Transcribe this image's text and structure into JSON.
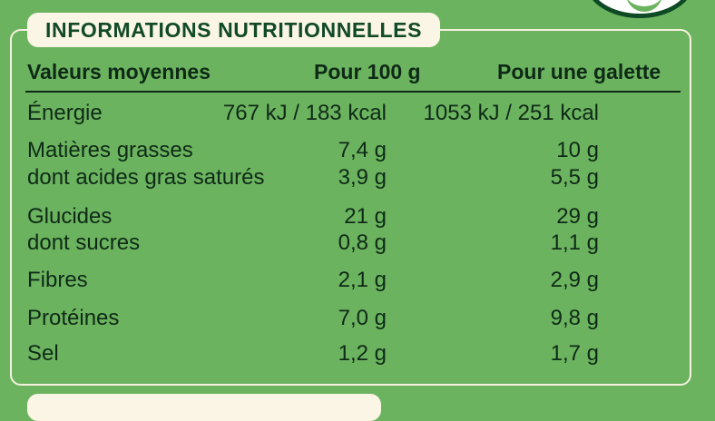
{
  "title": "INFORMATIONS NUTRITIONNELLES",
  "header": {
    "col0": "Valeurs moyennes",
    "col1": "Pour 100 g",
    "col2": "Pour une galette"
  },
  "rows": [
    {
      "label": "Énergie",
      "per100": "767 kJ / 183 kcal",
      "perGalette": "1053 kJ / 251 kcal"
    },
    {
      "label": "Matières grasses",
      "per100": "7,4 g",
      "perGalette": "10 g"
    },
    {
      "label": "dont acides gras saturés",
      "per100": "3,9 g",
      "perGalette": "5,5 g"
    },
    {
      "label": "Glucides",
      "per100": "21 g",
      "perGalette": "29 g"
    },
    {
      "label": "dont sucres",
      "per100": "0,8 g",
      "perGalette": "1,1 g"
    },
    {
      "label": "Fibres",
      "per100": "2,1 g",
      "perGalette": "2,9 g"
    },
    {
      "label": "Protéines",
      "per100": "7,0 g",
      "perGalette": "9,8 g"
    },
    {
      "label": "Sel",
      "per100": "1,2 g",
      "perGalette": "1,7 g"
    }
  ]
}
